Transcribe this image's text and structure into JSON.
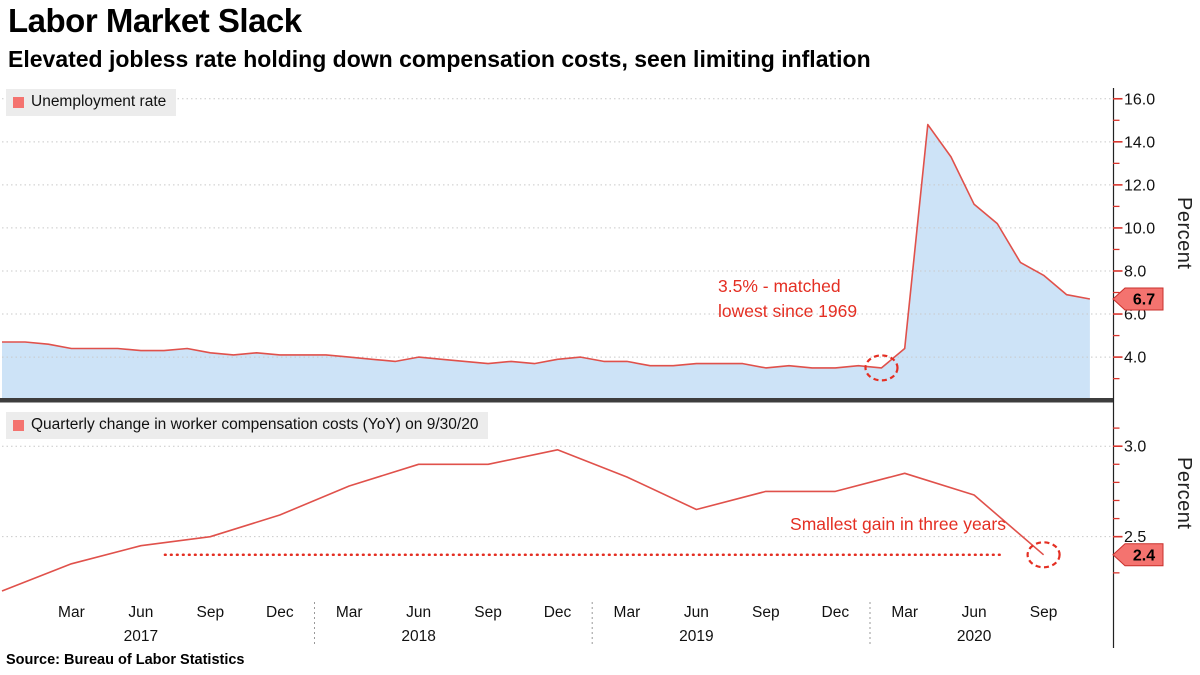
{
  "header": {
    "title": "Labor Market Slack",
    "subtitle": "Elevated jobless rate holding down compensation costs, seen limiting inflation"
  },
  "source_line": "Source: Bureau of Labor Statistics",
  "x_axis": {
    "month_labels": [
      "Mar",
      "Jun",
      "Sep",
      "Dec",
      "Mar",
      "Jun",
      "Sep",
      "Dec",
      "Mar",
      "Jun",
      "Sep",
      "Dec",
      "Mar",
      "Jun",
      "Sep"
    ],
    "year_labels": [
      "2017",
      "2018",
      "2019",
      "2020"
    ]
  },
  "colors": {
    "series_line": "#e0514b",
    "area_fill": "#cde3f7",
    "badge_fill": "#f4736f",
    "badge_border": "#c9302c",
    "annotation_red": "#e42f23",
    "tick_red": "#d8342c",
    "grid": "#c9c9c9",
    "axis_line": "#222222",
    "separator": "#3d3d3d",
    "legend_bg": "#ececec",
    "text": "#111111"
  },
  "chart_data": [
    {
      "type": "area",
      "panel": "top",
      "legend": "Unemployment rate",
      "ylabel": "Percent",
      "x_start": "Dec 2016",
      "x_end": "Nov 2020",
      "x_step": "month",
      "values": [
        4.7,
        4.7,
        4.6,
        4.4,
        4.4,
        4.4,
        4.3,
        4.3,
        4.4,
        4.2,
        4.1,
        4.2,
        4.1,
        4.1,
        4.1,
        4.0,
        3.9,
        3.8,
        4.0,
        3.9,
        3.8,
        3.7,
        3.8,
        3.7,
        3.9,
        4.0,
        3.8,
        3.8,
        3.6,
        3.6,
        3.7,
        3.7,
        3.7,
        3.5,
        3.6,
        3.5,
        3.5,
        3.6,
        3.5,
        4.4,
        14.8,
        13.3,
        11.1,
        10.2,
        8.4,
        7.8,
        6.9,
        6.7
      ],
      "ylim": [
        2.1,
        16.5
      ],
      "ytick_labels": [
        "4.0",
        "6.0",
        "8.0",
        "10.0",
        "12.0",
        "14.0",
        "16.0"
      ],
      "minor_ticks": [
        3,
        5,
        7,
        9,
        11,
        13,
        15
      ],
      "grid": true,
      "legend_position": "top-left",
      "last_value_label": "6.7",
      "annotation": {
        "lines": [
          "3.5% - matched",
          "lowest since 1969"
        ],
        "circle_month_index": 38,
        "circle_value": 3.5
      }
    },
    {
      "type": "line",
      "panel": "bottom",
      "legend": "Quarterly change in worker compensation costs (YoY) on 9/30/20",
      "ylabel": "Percent",
      "x_start": "Dec 2016",
      "x_end": "Sep 2020",
      "x_step": "quarter",
      "values": [
        2.2,
        2.35,
        2.45,
        2.5,
        2.62,
        2.78,
        2.9,
        2.9,
        2.98,
        2.83,
        2.65,
        2.75,
        2.75,
        2.85,
        2.73,
        2.4
      ],
      "ylim": [
        2.15,
        3.2
      ],
      "ytick_labels": [
        "2.5",
        "3.0"
      ],
      "minor_ticks": [
        2.3,
        2.4,
        2.6,
        2.7,
        2.8,
        2.9,
        3.1
      ],
      "grid": true,
      "legend_position": "top-left",
      "last_value_label": "2.4",
      "annotation": {
        "text": "Smallest gain in three years",
        "dotted_line_value": 2.4,
        "circle_month_index": 45,
        "circle_value": 2.4
      }
    }
  ]
}
